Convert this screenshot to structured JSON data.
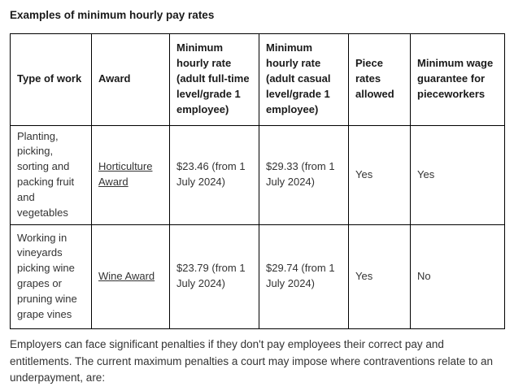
{
  "heading": "Examples of minimum hourly pay rates",
  "table": {
    "headers": [
      "Type of work",
      "Award",
      "Minimum hourly rate (adult full-time level/grade 1 employee)",
      "Minimum hourly rate (adult casual level/grade 1 employee)",
      "Piece rates allowed",
      "Minimum wage guarantee for pieceworkers"
    ],
    "rows": [
      {
        "type_of_work": "Planting, picking, sorting and packing fruit and vegetables",
        "award": "Horticulture Award",
        "full_time_rate": "$23.46 (from 1 July 2024)",
        "casual_rate": "$29.33 (from 1 July 2024)",
        "piece_rates_allowed": "Yes",
        "piecework_guarantee": "Yes"
      },
      {
        "type_of_work": "Working in vineyards picking wine grapes or pruning wine grape vines",
        "award": "Wine Award",
        "full_time_rate": "$23.79 (from 1 July 2024)",
        "casual_rate": "$29.74 (from 1 July 2024)",
        "piece_rates_allowed": "Yes",
        "piecework_guarantee": "No"
      }
    ]
  },
  "paragraph": "Employers can face significant penalties if they don't pay employees their correct pay and entitlements. The current maximum penalties a court may impose where contraventions relate to an underpayment, are:"
}
